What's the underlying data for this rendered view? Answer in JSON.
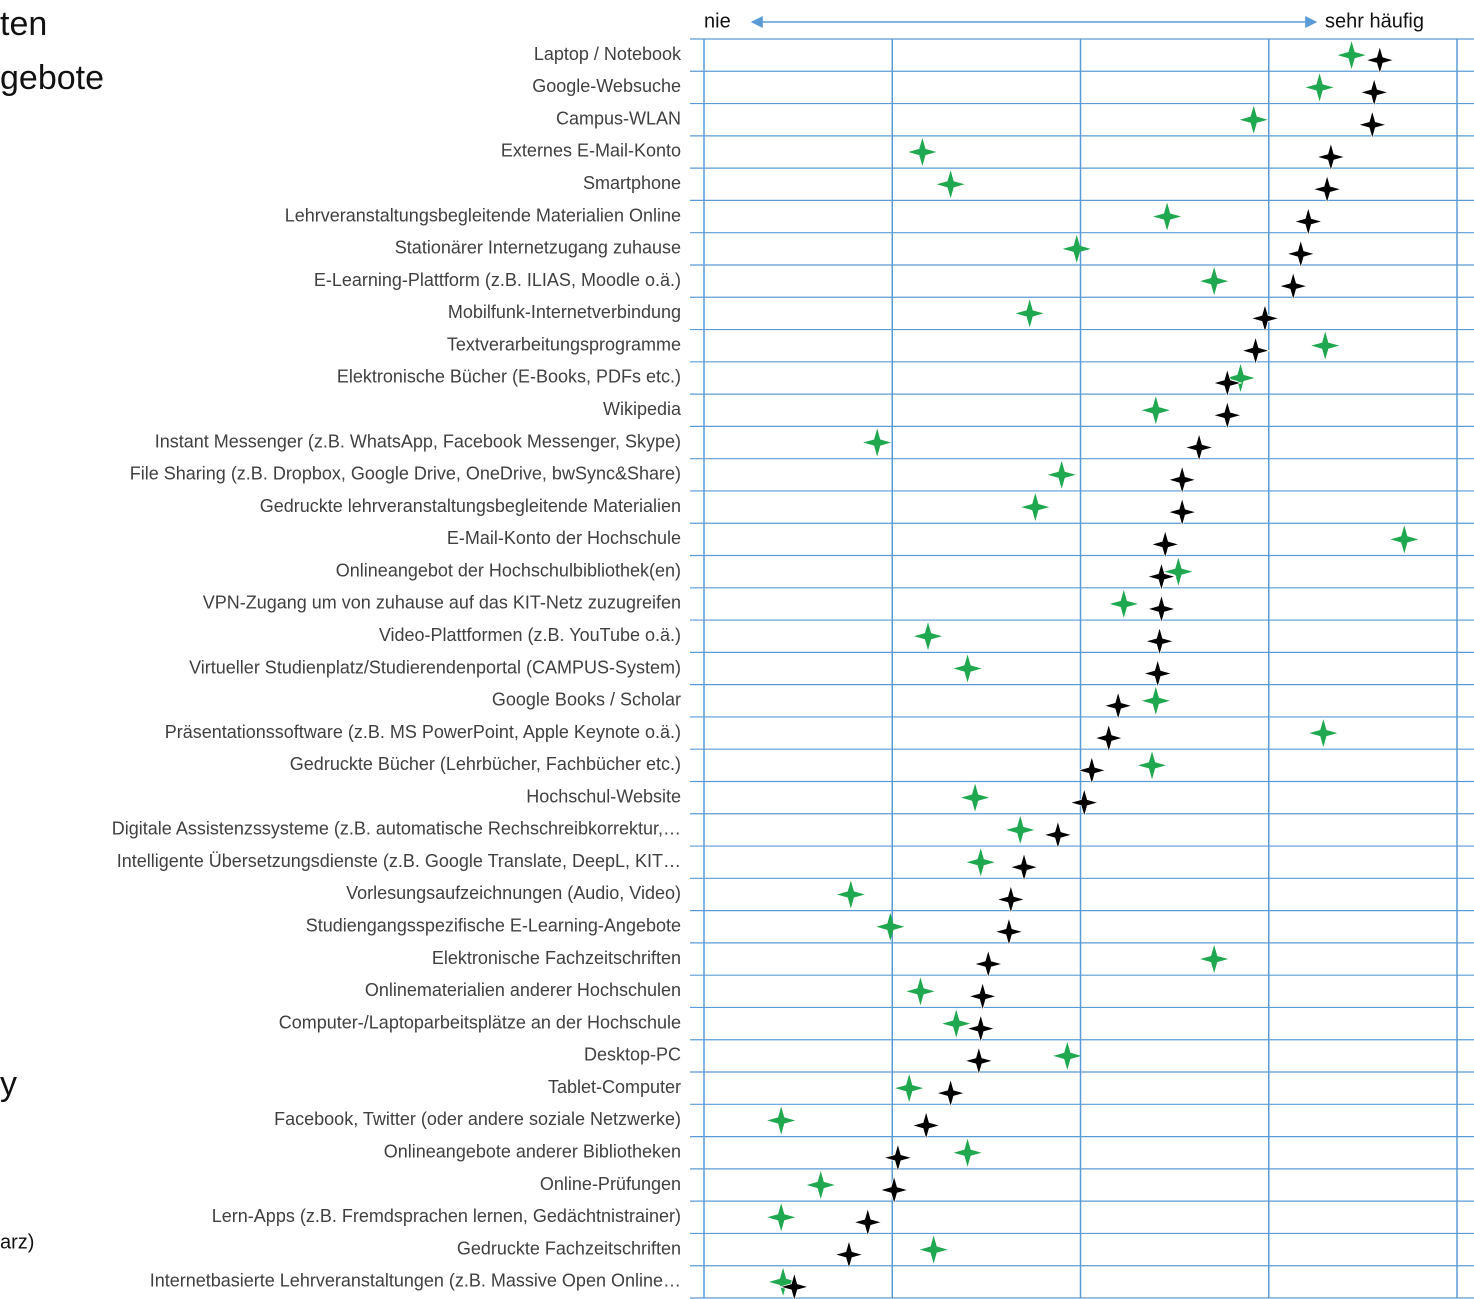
{
  "side_text": [
    "ten",
    "gebote",
    "y",
    "arz)"
  ],
  "chart_data": {
    "type": "dot",
    "annotations": [
      "nie",
      "sehr häufig"
    ],
    "categories": [
      "Laptop / Notebook",
      "Google-Websuche",
      "Campus-WLAN",
      "Externes E-Mail-Konto",
      "Smartphone",
      "Lehrveranstaltungsbegleitende Materialien Online",
      "Stationärer Internetzugang zuhause",
      "E-Learning-Plattform (z.B. ILIAS, Moodle o.ä.)",
      "Mobilfunk-Internetverbindung",
      "Textverarbeitungsprogramme",
      "Elektronische Bücher (E-Books, PDFs etc.)",
      "Wikipedia",
      "Instant Messenger (z.B. WhatsApp, Facebook Messenger, Skype)",
      "File Sharing (z.B. Dropbox, Google Drive, OneDrive, bwSync&Share)",
      "Gedruckte lehrveranstaltungsbegleitende Materialien",
      "E-Mail-Konto der Hochschule",
      "Onlineangebot der Hochschulbibliothek(en)",
      "VPN-Zugang um von zuhause auf das KIT-Netz zuzugreifen",
      "Video-Plattformen (z.B. YouTube o.ä.)",
      "Virtueller Studienplatz/Studierendenportal (CAMPUS-System)",
      "Google Books / Scholar",
      "Präsentationssoftware (z.B. MS PowerPoint, Apple Keynote o.ä.)",
      "Gedruckte Bücher (Lehrbücher, Fachbücher etc.)",
      "Hochschul-Website",
      "Digitale Assistenzssysteme (z.B. automatische Rechschreibkorrektur,…",
      "Intelligente Übersetzungsdienste (z.B. Google Translate, DeepL, KIT…",
      "Vorlesungsaufzeichnungen (Audio, Video)",
      "Studiengangsspezifische E-Learning-Angebote",
      "Elektronische Fachzeitschriften",
      "Onlinematerialien anderer Hochschulen",
      "Computer-/Laptoparbeitsplätze an der Hochschule",
      "Desktop-PC",
      "Tablet-Computer",
      "Facebook, Twitter (oder andere soziale Netzwerke)",
      "Onlineangebote anderer Bibliotheken",
      "Online-Prüfungen",
      "Lern-Apps (z.B. Fremdsprachen lernen, Gedächtnistrainer)",
      "Gedruckte Fachzeitschriften",
      "Internetbasierte Lehrveranstaltungen (z.B. Massive Open Online…"
    ],
    "series": [
      {
        "color": "#000000",
        "values": [
          4.59,
          4.56,
          4.55,
          4.33,
          4.31,
          4.21,
          4.17,
          4.13,
          3.98,
          3.93,
          3.78,
          3.78,
          3.63,
          3.54,
          3.54,
          3.45,
          3.43,
          3.43,
          3.42,
          3.41,
          3.2,
          3.15,
          3.06,
          3.02,
          2.88,
          2.7,
          2.63,
          2.62,
          2.51,
          2.48,
          2.47,
          2.46,
          2.31,
          2.18,
          2.03,
          2.01,
          1.87,
          1.77,
          1.48
        ]
      },
      {
        "color": "#1fa84f",
        "values": [
          4.44,
          4.27,
          3.92,
          2.16,
          2.31,
          3.46,
          2.98,
          3.71,
          2.73,
          4.3,
          3.85,
          3.4,
          1.92,
          2.9,
          2.76,
          4.72,
          3.52,
          3.23,
          2.19,
          2.4,
          3.4,
          4.29,
          3.38,
          2.44,
          2.68,
          2.47,
          1.78,
          1.99,
          3.71,
          2.15,
          2.34,
          2.93,
          2.09,
          1.41,
          2.4,
          1.62,
          1.41,
          2.22,
          1.42
        ]
      }
    ],
    "xlim": [
      1,
      5
    ],
    "xticks": [
      1,
      2,
      3,
      4,
      5
    ],
    "grid": true,
    "grid_color": "#5b9bd5"
  }
}
